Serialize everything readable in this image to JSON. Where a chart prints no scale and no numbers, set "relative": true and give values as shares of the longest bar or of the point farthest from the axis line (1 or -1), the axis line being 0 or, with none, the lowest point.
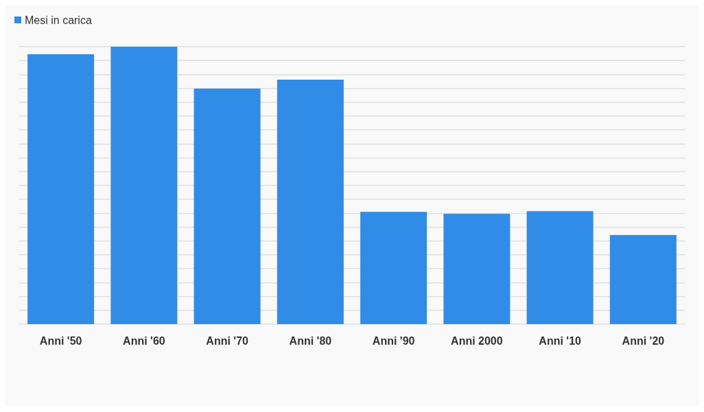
{
  "chart_data": {
    "type": "bar",
    "relative": true,
    "categories": [
      "Anni '50",
      "Anni '60",
      "Anni '70",
      "Anni '80",
      "Anni '90",
      "Anni 2000",
      "Anni '10",
      "Anni '20"
    ],
    "series": [
      {
        "name": "Mesi in carica",
        "color": "#318ce7",
        "values": [
          0.973,
          1,
          0.849,
          0.881,
          0.405,
          0.398,
          0.407,
          0.321
        ]
      }
    ],
    "grid": true,
    "legend": "top left"
  }
}
